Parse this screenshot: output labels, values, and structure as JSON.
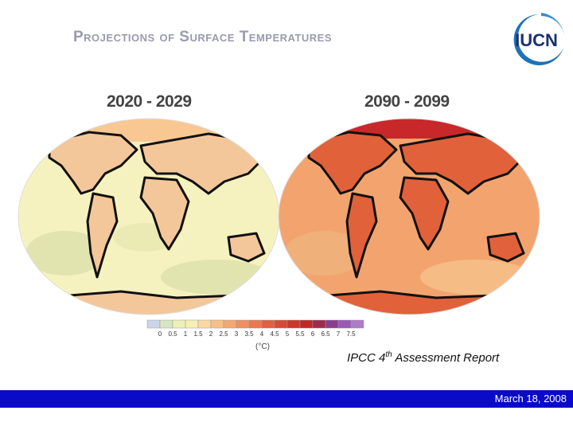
{
  "slide": {
    "title": "Projections of Surface Temperatures",
    "source_prefix": "IPCC 4",
    "source_sup": "th",
    "source_suffix": " Assessment Report",
    "footer_date": "March 18, 2008"
  },
  "logo": {
    "text": "IUCN",
    "icon": "iucn-logo"
  },
  "maps": [
    {
      "period": "2020 - 2029",
      "base_color": "#f6f2bf",
      "land_color": "#f4c79a",
      "ocean_tint": "#e2e4b0"
    },
    {
      "period": "2090 - 2099",
      "base_color": "#f3a46e",
      "land_color": "#e1613a",
      "ocean_tint": "#f0b07a"
    }
  ],
  "legend": {
    "unit_label": "(°C)",
    "ticks": [
      "0",
      "0.5",
      "1",
      "1.5",
      "2",
      "2.5",
      "3",
      "3.5",
      "4",
      "4.5",
      "5",
      "5.5",
      "6",
      "6.5",
      "7",
      "7.5"
    ],
    "colors": [
      "#c9d6ea",
      "#d6e6c0",
      "#eef0b8",
      "#f7efb4",
      "#fbd8a0",
      "#f8c088",
      "#f4a870",
      "#f09060",
      "#ea7850",
      "#e26042",
      "#d84a36",
      "#cc362c",
      "#bf2826",
      "#9e2a4c",
      "#8a3e8e",
      "#9a5ab4",
      "#b07ac8"
    ]
  }
}
